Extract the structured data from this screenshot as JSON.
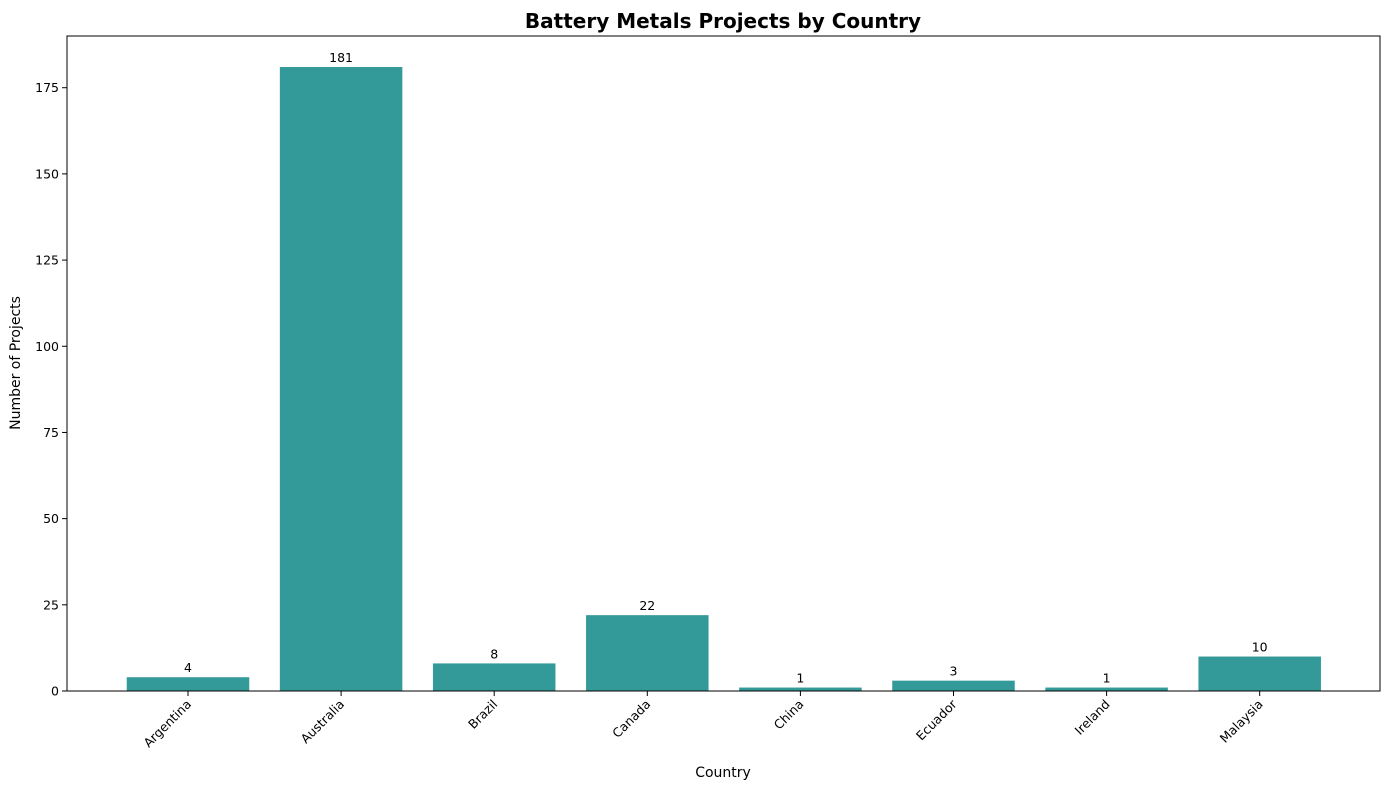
{
  "chart_data": {
    "type": "bar",
    "title": "Battery Metals Projects by Country",
    "xlabel": "Country",
    "ylabel": "Number of Projects",
    "categories": [
      "Argentina",
      "Australia",
      "Brazil",
      "Canada",
      "China",
      "Ecuador",
      "Ireland",
      "Malaysia"
    ],
    "values": [
      4,
      181,
      8,
      22,
      1,
      3,
      1,
      10
    ],
    "ylim": [
      0,
      190
    ],
    "yticks": [
      0,
      25,
      50,
      75,
      100,
      125,
      150,
      175
    ],
    "bar_color": "#339a99",
    "grid": false,
    "legend": "none",
    "data_labels": true
  }
}
